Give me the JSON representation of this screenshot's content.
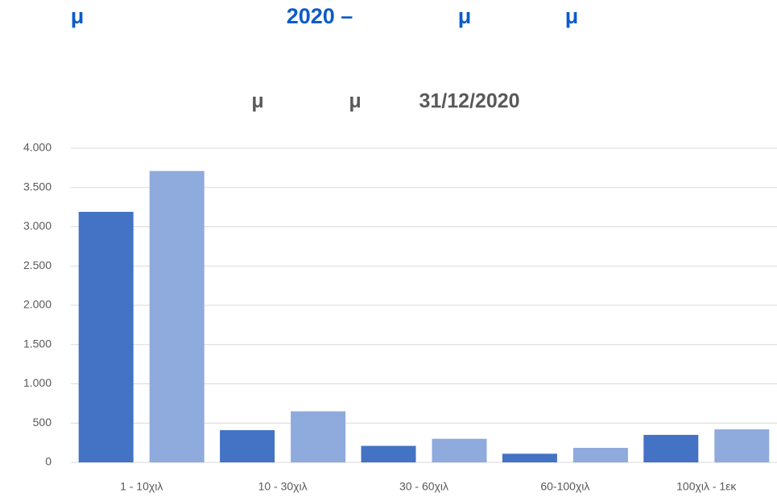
{
  "header": {
    "title_parts": [
      "μ",
      "2020 –",
      "μ",
      "μ"
    ]
  },
  "chart_data": {
    "type": "bar",
    "title_parts": [
      "μ",
      "μ",
      "31/12/2020"
    ],
    "categories": [
      "1 - 10χιλ",
      "10 - 30χιλ",
      "30 - 60χιλ",
      "60-100χιλ",
      "100χιλ - 1εκ"
    ],
    "series": [
      {
        "color": "#4472c4",
        "values": [
          3190,
          410,
          210,
          110,
          350
        ]
      },
      {
        "color": "#8faadc",
        "values": [
          3710,
          650,
          300,
          185,
          420
        ]
      }
    ],
    "ylim": [
      0,
      4000
    ],
    "yticks": [
      0,
      500,
      {
        "value": 1000,
        "label": "1.000"
      },
      {
        "value": 1500,
        "label": "1.500"
      },
      {
        "value": 2000,
        "label": "2.000"
      },
      {
        "value": 2500,
        "label": "2.500"
      },
      {
        "value": 3000,
        "label": "3.000"
      },
      {
        "value": 3500,
        "label": "3.500"
      },
      {
        "value": 4000,
        "label": "4.000"
      }
    ],
    "grid": true
  }
}
